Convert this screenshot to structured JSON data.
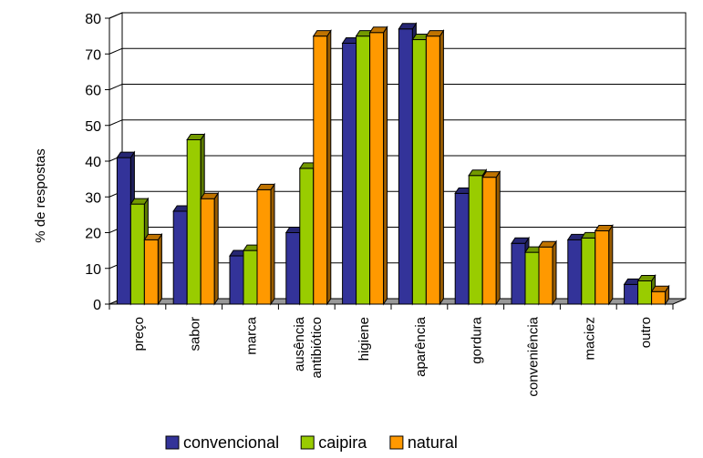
{
  "chart_data": {
    "type": "bar",
    "title": "",
    "xlabel": "",
    "ylabel": "% de respostas",
    "ylim": [
      0,
      80
    ],
    "yticks": [
      0,
      10,
      20,
      30,
      40,
      50,
      60,
      70,
      80
    ],
    "grid": true,
    "legend_position": "bottom",
    "three_d": true,
    "categories": [
      [
        "preço"
      ],
      [
        "sabor"
      ],
      [
        "marca"
      ],
      [
        "ausência",
        "antibiótico"
      ],
      [
        "higiene"
      ],
      [
        "aparência"
      ],
      [
        "gordura"
      ],
      [
        "conveniência"
      ],
      [
        "maciez"
      ],
      [
        "outro"
      ]
    ],
    "series": [
      {
        "name": "convencional",
        "color": "#333399",
        "values": [
          41,
          26,
          13.5,
          20,
          73,
          77,
          31,
          17,
          18,
          5.5
        ]
      },
      {
        "name": "caipira",
        "color": "#99CC00",
        "values": [
          28,
          46,
          15,
          38,
          75,
          74,
          36,
          14.5,
          18.5,
          6.5
        ]
      },
      {
        "name": "natural",
        "color": "#FF9900",
        "values": [
          18,
          29.5,
          32,
          75,
          76,
          75,
          35.5,
          16,
          20.5,
          3.5
        ]
      }
    ]
  }
}
